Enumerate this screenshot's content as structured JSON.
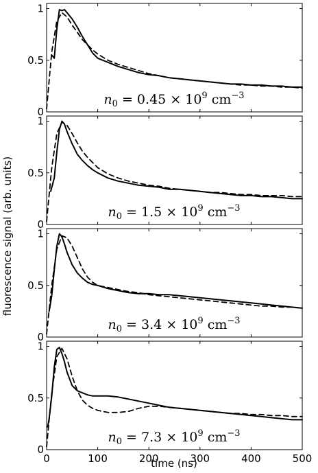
{
  "chart_data": {
    "type": "line",
    "xlabel": "time (ns)",
    "ylabel": "fluorescence signal (arb. units)",
    "xlim": [
      0,
      500
    ],
    "ylim": [
      0,
      1.05
    ],
    "x_ticks": [
      "0",
      "100",
      "200",
      "300",
      "400",
      "500"
    ],
    "y_ticks": [
      "0",
      "0.5",
      "1"
    ],
    "grid": false,
    "panels": [
      {
        "annotation": {
          "var": "n",
          "sub": "0",
          "rest": " = 0.45 × 10",
          "exp": "9",
          "unit": " cm",
          "unit_exp": "−3"
        },
        "series": [
          {
            "style": "solid",
            "x": [
              10,
              15,
              20,
              25,
              30,
              35,
              40,
              50,
              60,
              70,
              80,
              90,
              100,
              120,
              140,
              160,
              180,
              200,
              220,
              240,
              260,
              280,
              300,
              320,
              340,
              360,
              380,
              400,
              420,
              440,
              460,
              480,
              500
            ],
            "y": [
              0.55,
              0.52,
              0.8,
              0.99,
              0.98,
              0.99,
              0.96,
              0.9,
              0.82,
              0.73,
              0.65,
              0.57,
              0.52,
              0.48,
              0.44,
              0.41,
              0.38,
              0.36,
              0.35,
              0.33,
              0.32,
              0.31,
              0.3,
              0.29,
              0.28,
              0.27,
              0.27,
              0.26,
              0.26,
              0.25,
              0.25,
              0.24,
              0.24
            ]
          },
          {
            "style": "dashed",
            "x": [
              0,
              10,
              20,
              30,
              40,
              50,
              60,
              70,
              80,
              90,
              100,
              120,
              140,
              160,
              180,
              200,
              220,
              240,
              260,
              280,
              300,
              320,
              340,
              360,
              380,
              400,
              420,
              440,
              460,
              480,
              500
            ],
            "y": [
              0.03,
              0.58,
              0.88,
              0.96,
              0.92,
              0.84,
              0.77,
              0.7,
              0.65,
              0.6,
              0.56,
              0.5,
              0.46,
              0.43,
              0.4,
              0.37,
              0.35,
              0.33,
              0.32,
              0.31,
              0.3,
              0.29,
              0.28,
              0.27,
              0.26,
              0.26,
              0.25,
              0.25,
              0.24,
              0.24,
              0.23
            ]
          }
        ]
      },
      {
        "annotation": {
          "var": "n",
          "sub": "0",
          "rest": " = 1.5 × 10",
          "exp": "9",
          "unit": " cm",
          "unit_exp": "−3"
        },
        "series": [
          {
            "style": "solid",
            "x": [
              8,
              15,
              20,
              25,
              30,
              35,
              40,
              50,
              60,
              70,
              80,
              90,
              100,
              120,
              140,
              160,
              180,
              200,
              220,
              240,
              260,
              280,
              300,
              320,
              340,
              360,
              380,
              400,
              420,
              440,
              460,
              480,
              500
            ],
            "y": [
              0.32,
              0.45,
              0.7,
              0.92,
              1.0,
              0.97,
              0.9,
              0.78,
              0.68,
              0.62,
              0.57,
              0.53,
              0.5,
              0.45,
              0.42,
              0.4,
              0.38,
              0.37,
              0.36,
              0.34,
              0.34,
              0.33,
              0.32,
              0.31,
              0.3,
              0.29,
              0.28,
              0.28,
              0.27,
              0.27,
              0.26,
              0.25,
              0.25
            ]
          },
          {
            "style": "dashed",
            "x": [
              0,
              10,
              20,
              30,
              40,
              50,
              60,
              70,
              80,
              90,
              100,
              120,
              140,
              160,
              180,
              200,
              220,
              240,
              260,
              280,
              300,
              320,
              340,
              360,
              380,
              400,
              420,
              440,
              460,
              480,
              500
            ],
            "y": [
              0.03,
              0.55,
              0.88,
              0.99,
              0.96,
              0.88,
              0.79,
              0.71,
              0.65,
              0.6,
              0.55,
              0.49,
              0.45,
              0.42,
              0.4,
              0.38,
              0.37,
              0.35,
              0.34,
              0.33,
              0.32,
              0.31,
              0.31,
              0.3,
              0.29,
              0.29,
              0.28,
              0.28,
              0.28,
              0.27,
              0.27
            ]
          }
        ]
      },
      {
        "annotation": {
          "var": "n",
          "sub": "0",
          "rest": " = 3.4 × 10",
          "exp": "9",
          "unit": " cm",
          "unit_exp": "−3"
        },
        "series": [
          {
            "style": "solid",
            "x": [
              5,
              10,
              15,
              20,
              25,
              30,
              35,
              40,
              50,
              60,
              70,
              80,
              90,
              100,
              120,
              140,
              160,
              180,
              200,
              220,
              240,
              260,
              280,
              300,
              320,
              340,
              360,
              380,
              400,
              420,
              440,
              460,
              480,
              500
            ],
            "y": [
              0.25,
              0.4,
              0.65,
              0.88,
              1.0,
              0.97,
              0.9,
              0.82,
              0.7,
              0.62,
              0.57,
              0.53,
              0.51,
              0.5,
              0.47,
              0.45,
              0.43,
              0.42,
              0.42,
              0.41,
              0.41,
              0.4,
              0.39,
              0.38,
              0.37,
              0.36,
              0.35,
              0.34,
              0.33,
              0.32,
              0.31,
              0.3,
              0.29,
              0.28
            ]
          },
          {
            "style": "dashed",
            "x": [
              0,
              10,
              20,
              30,
              40,
              50,
              60,
              70,
              80,
              90,
              100,
              120,
              140,
              160,
              180,
              200,
              220,
              240,
              260,
              280,
              300,
              320,
              340,
              360,
              380,
              400,
              420,
              440,
              460,
              480,
              500
            ],
            "y": [
              0.03,
              0.5,
              0.85,
              0.98,
              0.96,
              0.88,
              0.77,
              0.66,
              0.58,
              0.53,
              0.5,
              0.48,
              0.46,
              0.44,
              0.43,
              0.41,
              0.4,
              0.39,
              0.38,
              0.37,
              0.36,
              0.35,
              0.34,
              0.33,
              0.32,
              0.31,
              0.3,
              0.3,
              0.29,
              0.29,
              0.28
            ]
          }
        ]
      },
      {
        "annotation": {
          "var": "n",
          "sub": "0",
          "rest": " = 7.3 × 10",
          "exp": "9",
          "unit": " cm",
          "unit_exp": "−3"
        },
        "series": [
          {
            "style": "solid",
            "x": [
              2,
              5,
              10,
              15,
              20,
              25,
              30,
              35,
              40,
              50,
              60,
              70,
              80,
              90,
              100,
              120,
              140,
              160,
              180,
              200,
              220,
              240,
              260,
              280,
              300,
              320,
              340,
              360,
              380,
              400,
              420,
              440,
              460,
              480,
              500
            ],
            "y": [
              0.22,
              0.3,
              0.52,
              0.8,
              0.97,
              0.99,
              0.93,
              0.85,
              0.75,
              0.62,
              0.57,
              0.55,
              0.53,
              0.52,
              0.52,
              0.52,
              0.51,
              0.49,
              0.47,
              0.45,
              0.43,
              0.41,
              0.4,
              0.39,
              0.38,
              0.37,
              0.36,
              0.35,
              0.34,
              0.33,
              0.32,
              0.31,
              0.3,
              0.29,
              0.29
            ]
          },
          {
            "style": "dashed",
            "x": [
              0,
              10,
              20,
              30,
              40,
              50,
              60,
              70,
              80,
              90,
              100,
              120,
              140,
              160,
              180,
              200,
              220,
              240,
              260,
              280,
              300,
              320,
              340,
              360,
              380,
              400,
              420,
              440,
              460,
              480,
              500
            ],
            "y": [
              0.03,
              0.55,
              0.9,
              0.98,
              0.88,
              0.71,
              0.57,
              0.48,
              0.43,
              0.4,
              0.38,
              0.36,
              0.36,
              0.37,
              0.4,
              0.42,
              0.42,
              0.41,
              0.4,
              0.39,
              0.38,
              0.37,
              0.36,
              0.35,
              0.35,
              0.34,
              0.34,
              0.33,
              0.33,
              0.32,
              0.32
            ]
          }
        ]
      }
    ]
  }
}
